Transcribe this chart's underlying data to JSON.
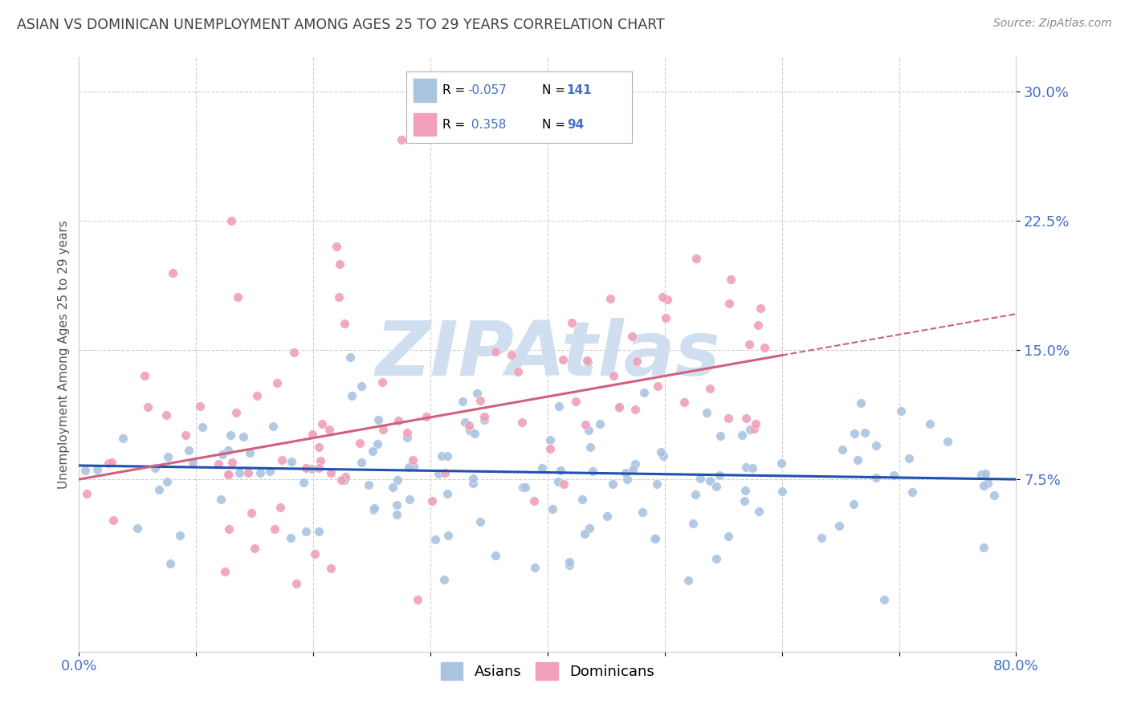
{
  "title": "ASIAN VS DOMINICAN UNEMPLOYMENT AMONG AGES 25 TO 29 YEARS CORRELATION CHART",
  "source": "Source: ZipAtlas.com",
  "ylabel": "Unemployment Among Ages 25 to 29 years",
  "ytick_labels": [
    "7.5%",
    "15.0%",
    "22.5%",
    "30.0%"
  ],
  "ytick_values": [
    0.075,
    0.15,
    0.225,
    0.3
  ],
  "xlim": [
    0.0,
    0.8
  ],
  "ylim": [
    -0.025,
    0.32
  ],
  "asian_color": "#aac4e0",
  "dominican_color": "#f0a0b8",
  "asian_line_color": "#2050b0",
  "dominican_line_color": "#d06080",
  "axis_label_color": "#4470c4",
  "title_color": "#404040",
  "source_color": "#888888",
  "background_color": "#ffffff",
  "grid_color": "#d0d0d0",
  "watermark_color": "#d0dff0",
  "asian_R": -0.057,
  "asian_N": 141,
  "dominican_R": 0.358,
  "dominican_N": 94,
  "legend_r_color": "#000000",
  "legend_n_color": "#4470c4"
}
